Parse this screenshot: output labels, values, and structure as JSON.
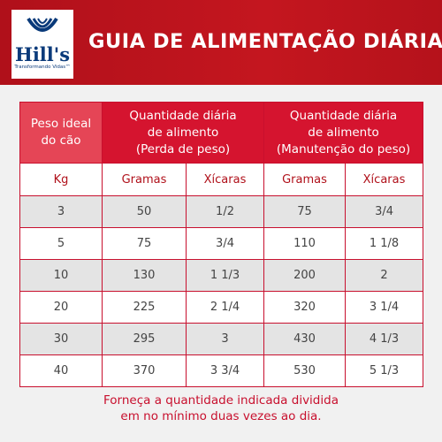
{
  "header": {
    "logo": "Hill's",
    "tagline": "Transformando Vidas™",
    "title": "GUIA DE ALIMENTAÇÃO DIÁRIA"
  },
  "table": {
    "columns": [
      [
        "Peso ideal",
        "do cão"
      ],
      [
        "Quantidade diária",
        "de alimento",
        "(Perda de peso)"
      ],
      [
        "Quantidade diária",
        "de alimento",
        "(Manutenção do peso)"
      ]
    ],
    "units": [
      "Kg",
      "Gramas",
      "Xícaras",
      "Gramas",
      "Xícaras"
    ],
    "rows": [
      [
        "3",
        "50",
        "1/2",
        "75",
        "3/4"
      ],
      [
        "5",
        "75",
        "3/4",
        "110",
        "1 1/8"
      ],
      [
        "10",
        "130",
        "1 1/3",
        "200",
        "2"
      ],
      [
        "20",
        "225",
        "2 1/4",
        "320",
        "3 1/4"
      ],
      [
        "30",
        "295",
        "3",
        "430",
        "4 1/3"
      ],
      [
        "40",
        "370",
        "3 3/4",
        "530",
        "5 1/3"
      ]
    ]
  },
  "footer": [
    "Forneça a quantidade indicada dividida",
    "em no mínimo duas vezes ao dia."
  ]
}
